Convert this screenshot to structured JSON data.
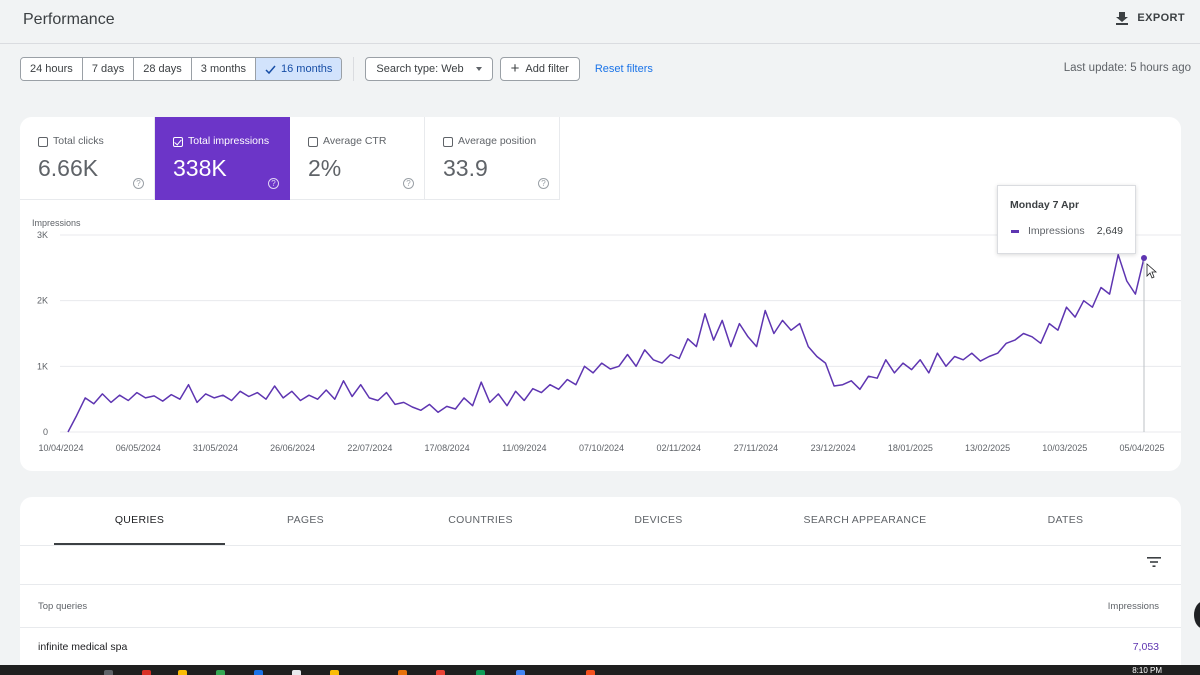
{
  "header": {
    "title": "Performance",
    "export_label": "EXPORT",
    "export_icon": "download-icon"
  },
  "filters": {
    "ranges": [
      {
        "label": "24 hours",
        "active": false
      },
      {
        "label": "7 days",
        "active": false
      },
      {
        "label": "28 days",
        "active": false
      },
      {
        "label": "3 months",
        "active": false
      },
      {
        "label": "16 months",
        "active": true
      }
    ],
    "search_type": "Search type: Web",
    "add_filter": "Add filter",
    "reset": "Reset filters",
    "last_update": "Last update: 5 hours ago"
  },
  "metrics": [
    {
      "label": "Total clicks",
      "value": "6.66K",
      "checked": false
    },
    {
      "label": "Total impressions",
      "value": "338K",
      "checked": true
    },
    {
      "label": "Average CTR",
      "value": "2%",
      "checked": false
    },
    {
      "label": "Average position",
      "value": "33.9",
      "checked": false
    }
  ],
  "tooltip": {
    "date": "Monday 7 Apr",
    "series": "Impressions",
    "value": "2,649"
  },
  "colors": {
    "accent": "#6c35c8",
    "line": "#5e35b1",
    "link": "#1a73e8"
  },
  "chart_data": {
    "type": "line",
    "ylabel": "Impressions",
    "yticks": [
      "0",
      "1K",
      "2K",
      "3K"
    ],
    "ylim": [
      0,
      3000
    ],
    "xticks": [
      "10/04/2024",
      "06/05/2024",
      "31/05/2024",
      "26/06/2024",
      "22/07/2024",
      "17/08/2024",
      "11/09/2024",
      "07/10/2024",
      "02/11/2024",
      "27/11/2024",
      "23/12/2024",
      "18/01/2025",
      "13/02/2025",
      "10/03/2025",
      "05/04/2025"
    ],
    "series": [
      {
        "name": "Impressions",
        "values": [
          0,
          250,
          520,
          430,
          580,
          450,
          560,
          480,
          600,
          520,
          550,
          470,
          570,
          500,
          720,
          450,
          580,
          520,
          560,
          480,
          620,
          540,
          600,
          500,
          700,
          520,
          620,
          480,
          560,
          500,
          640,
          500,
          780,
          540,
          720,
          520,
          480,
          600,
          420,
          450,
          380,
          330,
          420,
          300,
          390,
          350,
          520,
          400,
          760,
          450,
          580,
          400,
          620,
          480,
          660,
          600,
          720,
          650,
          800,
          720,
          1000,
          900,
          1050,
          960,
          1000,
          1180,
          1000,
          1250,
          1100,
          1050,
          1180,
          1120,
          1420,
          1300,
          1800,
          1400,
          1700,
          1300,
          1650,
          1450,
          1300,
          1850,
          1500,
          1700,
          1550,
          1650,
          1300,
          1150,
          1050,
          700,
          720,
          780,
          650,
          850,
          820,
          1100,
          900,
          1050,
          950,
          1100,
          900,
          1200,
          1000,
          1150,
          1100,
          1200,
          1080,
          1150,
          1200,
          1350,
          1400,
          1500,
          1450,
          1350,
          1650,
          1550,
          1900,
          1750,
          2000,
          1900,
          2200,
          2100,
          2700,
          2300,
          2100,
          2649
        ],
        "peak_start": 0
      }
    ]
  },
  "table": {
    "tabs": [
      "QUERIES",
      "PAGES",
      "COUNTRIES",
      "DEVICES",
      "SEARCH APPEARANCE",
      "DATES"
    ],
    "active_tab": 0,
    "col_left": "Top queries",
    "col_right": "Impressions",
    "rows": [
      {
        "query": "infinite medical spa",
        "impressions": "7,053"
      }
    ]
  },
  "taskbar": {
    "time": "8:10 PM"
  }
}
